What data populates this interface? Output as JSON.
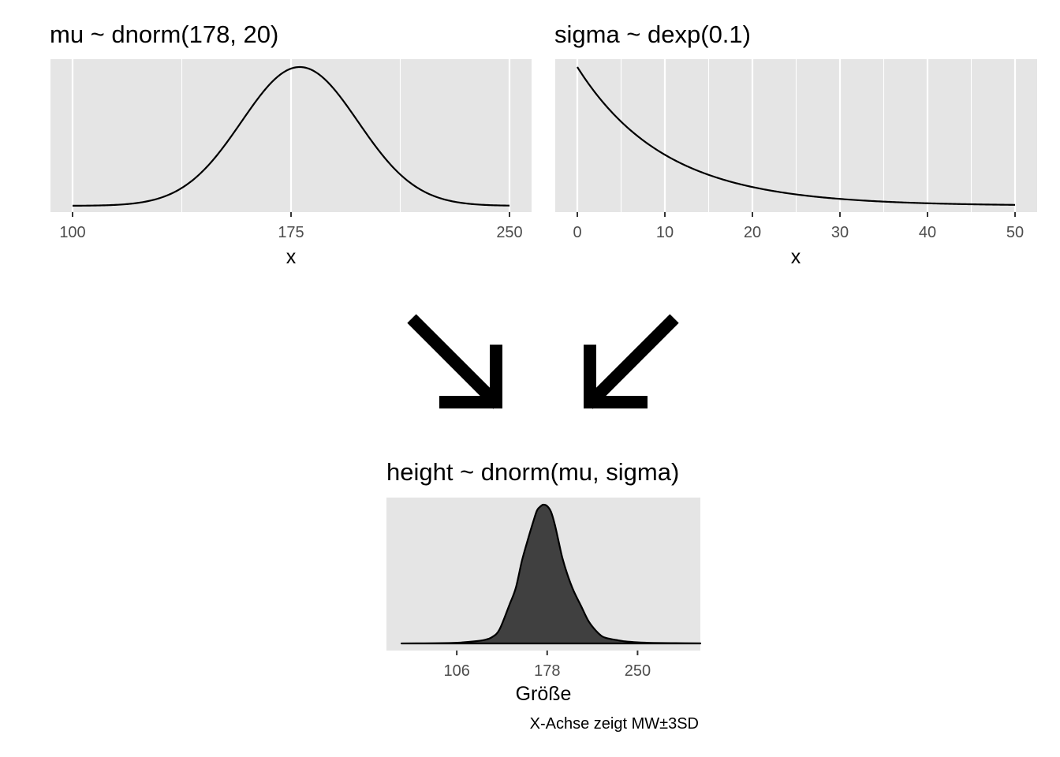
{
  "chart_data": [
    {
      "id": "mu-prior",
      "type": "line",
      "title": "mu ~ dnorm(178, 20)",
      "distribution": "normal",
      "mean": 178,
      "sd": 20,
      "xlabel": "x",
      "ylabel": "",
      "xlim": [
        100,
        250
      ],
      "x_ticks": [
        100,
        175,
        250
      ],
      "x_tick_labels": [
        "100",
        "175",
        "250"
      ],
      "x_minor_ticks": [
        137.5,
        212.5
      ],
      "y_ticks_shown": false,
      "grid": true,
      "background": "#e5e5e5",
      "line_color": "#000000"
    },
    {
      "id": "sigma-prior",
      "type": "line",
      "title": "sigma ~ dexp(0.1)",
      "distribution": "exponential",
      "rate": 0.1,
      "xlabel": "x",
      "ylabel": "",
      "xlim": [
        0,
        50
      ],
      "x_ticks": [
        0,
        10,
        20,
        30,
        40,
        50
      ],
      "x_tick_labels": [
        "0",
        "10",
        "20",
        "30",
        "40",
        "50"
      ],
      "x_minor_ticks": [
        5,
        15,
        25,
        35,
        45
      ],
      "y_ticks_shown": false,
      "grid": true,
      "background": "#e5e5e5",
      "line_color": "#000000"
    },
    {
      "id": "height-prior-predictive",
      "type": "area",
      "title": "height ~ dnorm(mu, sigma)",
      "xlabel": "Größe",
      "ylabel": "",
      "caption": "X-Achse zeigt MW±3SD",
      "xlim": [
        50,
        300
      ],
      "density_points": {
        "x": [
          62,
          80,
          100,
          110,
          120,
          128,
          134,
          140,
          148,
          153,
          158,
          163,
          167,
          170,
          173,
          175,
          178,
          181,
          184,
          187,
          190,
          194,
          199,
          205,
          211,
          217,
          222,
          227,
          233,
          240,
          250,
          262,
          280,
          300
        ],
        "y": [
          0.0,
          0.001,
          0.003,
          0.007,
          0.015,
          0.025,
          0.045,
          0.1,
          0.28,
          0.4,
          0.6,
          0.76,
          0.88,
          0.96,
          0.99,
          1.0,
          0.99,
          0.95,
          0.86,
          0.74,
          0.62,
          0.5,
          0.38,
          0.27,
          0.16,
          0.09,
          0.05,
          0.035,
          0.025,
          0.015,
          0.008,
          0.004,
          0.002,
          0.001
        ]
      },
      "x_ticks": [
        106,
        178,
        250
      ],
      "x_tick_labels": [
        "106",
        "178",
        "250"
      ],
      "y_ticks_shown": false,
      "grid": false,
      "background": "#e5e5e5",
      "fill_color": "#404040",
      "line_color": "#000000"
    }
  ],
  "arrows": [
    {
      "name": "arrow-down-right-icon",
      "direction": "down-right"
    },
    {
      "name": "arrow-down-left-icon",
      "direction": "down-left"
    }
  ]
}
